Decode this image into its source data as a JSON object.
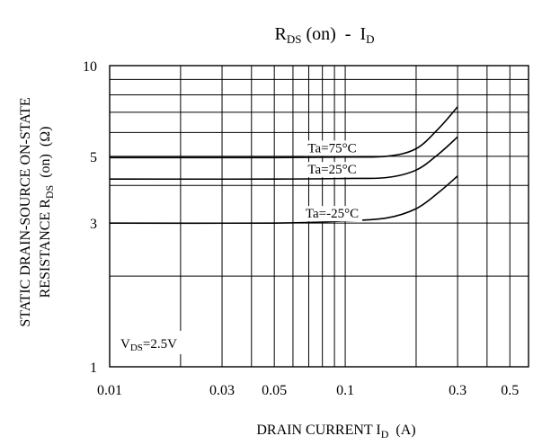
{
  "chart_data": {
    "type": "line",
    "title": {
      "main": "R",
      "sub1": "DS",
      "mid": " (on)  -  I",
      "sub2": "D"
    },
    "xlabel": {
      "main": "DRAIN CURRENT I",
      "sub": "D",
      "tail": "  (A)"
    },
    "ylabel": {
      "line1": "STATIC DRAIN-SOURCE ON-STATE",
      "line2_main": "RESISTANCE R",
      "line2_sub": "DS",
      "line2_tail": "  (on)  (Ω)"
    },
    "x_scale": "log",
    "y_scale": "log",
    "xlim": [
      0.01,
      0.6
    ],
    "ylim": [
      1,
      10
    ],
    "x_ticks": [
      {
        "value": 0.01,
        "label": "0.01"
      },
      {
        "value": 0.03,
        "label": "0.03"
      },
      {
        "value": 0.05,
        "label": "0.05"
      },
      {
        "value": 0.1,
        "label": "0.1"
      },
      {
        "value": 0.3,
        "label": "0.3"
      },
      {
        "value": 0.5,
        "label": "0.5"
      }
    ],
    "y_ticks": [
      {
        "value": 1,
        "label": "1"
      },
      {
        "value": 3,
        "label": "3"
      },
      {
        "value": 5,
        "label": "5"
      },
      {
        "value": 10,
        "label": "10"
      }
    ],
    "x_grid": [
      0.01,
      0.02,
      0.03,
      0.04,
      0.05,
      0.06,
      0.07,
      0.08,
      0.09,
      0.1,
      0.2,
      0.3,
      0.4,
      0.5,
      0.6
    ],
    "y_grid": [
      1,
      2,
      3,
      4,
      5,
      6,
      7,
      8,
      9,
      10
    ],
    "grid": true,
    "condition": {
      "main": "V",
      "sub": "DS",
      "tail": "=2.5V"
    },
    "series": [
      {
        "name": "Ta=75°C",
        "x": [
          0.01,
          0.05,
          0.1,
          0.15,
          0.2,
          0.25,
          0.3
        ],
        "y": [
          4.95,
          4.95,
          4.97,
          5.0,
          5.3,
          6.2,
          7.3
        ]
      },
      {
        "name": "Ta=25°C",
        "x": [
          0.01,
          0.05,
          0.1,
          0.15,
          0.2,
          0.25,
          0.3
        ],
        "y": [
          4.2,
          4.2,
          4.22,
          4.25,
          4.5,
          5.1,
          5.8
        ]
      },
      {
        "name": "Ta=-25°C",
        "x": [
          0.01,
          0.05,
          0.1,
          0.15,
          0.2,
          0.25,
          0.3
        ],
        "y": [
          3.0,
          3.0,
          3.05,
          3.12,
          3.35,
          3.8,
          4.3
        ]
      }
    ]
  }
}
